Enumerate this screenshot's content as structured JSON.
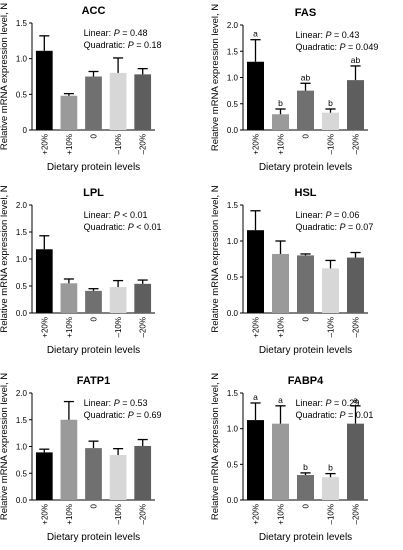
{
  "ui": {
    "colors": {
      "bars": [
        "#000000",
        "#9a9a9a",
        "#707070",
        "#d7d7d7",
        "#5e5e5e"
      ],
      "axis": "#000000"
    }
  },
  "chart_data": [
    {
      "type": "bar",
      "title": "ACC",
      "xlabel": "Dietary protein levels",
      "ylabel": "Relative mRNA expression level, N",
      "categories": [
        "+20%",
        "+10%",
        "0",
        "–10%",
        "–20%"
      ],
      "values": [
        1.11,
        0.48,
        0.75,
        0.8,
        0.78
      ],
      "errors": [
        0.21,
        0.03,
        0.07,
        0.21,
        0.08
      ],
      "ylim": [
        0,
        1.5
      ],
      "yticks": [
        "0",
        "0.5",
        "1.0",
        "1.5"
      ],
      "stats": [
        "Linear: P = 0.48",
        "Quadratic: P = 0.18"
      ],
      "letters": []
    },
    {
      "type": "bar",
      "title": "FAS",
      "xlabel": "Dietary protein levels",
      "ylabel": "Relative mRNA expression level, N",
      "categories": [
        "+20%",
        "+10%",
        "0",
        "–10%",
        "–20%"
      ],
      "values": [
        1.3,
        0.3,
        0.75,
        0.33,
        0.95
      ],
      "errors": [
        0.42,
        0.1,
        0.14,
        0.07,
        0.27
      ],
      "ylim": [
        0,
        2.0
      ],
      "yticks": [
        "0.0",
        "0.5",
        "1.0",
        "1.5",
        "2.0"
      ],
      "stats": [
        "Linear: P = 0.43",
        "Quadratic: P = 0.049"
      ],
      "letters": [
        "a",
        "b",
        "ab",
        "b",
        "ab"
      ]
    },
    {
      "type": "bar",
      "title": "LPL",
      "xlabel": "Dietary protein levels",
      "ylabel": "Relative mRNA expression level, N",
      "categories": [
        "+20%",
        "+10%",
        "0",
        "–10%",
        "–20%"
      ],
      "values": [
        1.18,
        0.55,
        0.41,
        0.48,
        0.54
      ],
      "errors": [
        0.25,
        0.08,
        0.04,
        0.12,
        0.07
      ],
      "ylim": [
        0,
        2.0
      ],
      "yticks": [
        "0.0",
        "0.5",
        "1.0",
        "1.5",
        "2.0"
      ],
      "stats": [
        "Linear: P < 0.01",
        "Quadratic: P < 0.01"
      ],
      "letters": []
    },
    {
      "type": "bar",
      "title": "HSL",
      "xlabel": "Dietary protein levels",
      "ylabel": "Relative mRNA expression level, N",
      "categories": [
        "+20%",
        "+10%",
        "0",
        "–10%",
        "–20%"
      ],
      "values": [
        1.15,
        0.82,
        0.8,
        0.62,
        0.77
      ],
      "errors": [
        0.27,
        0.18,
        0.02,
        0.11,
        0.07
      ],
      "ylim": [
        0,
        1.5
      ],
      "yticks": [
        "0.0",
        "0.5",
        "1.0",
        "1.5"
      ],
      "stats": [
        "Linear: P = 0.06",
        "Quadratic: P = 0.07"
      ],
      "letters": []
    },
    {
      "type": "bar",
      "title": "FATP1",
      "xlabel": "Dietary protein levels",
      "ylabel": "Relative mRNA expression level, N",
      "categories": [
        "+20%",
        "+10%",
        "0",
        "–10%",
        "–20%"
      ],
      "values": [
        0.89,
        1.5,
        0.97,
        0.84,
        1.01
      ],
      "errors": [
        0.06,
        0.34,
        0.13,
        0.12,
        0.12
      ],
      "ylim": [
        0,
        2.0
      ],
      "yticks": [
        "0.0",
        "0.5",
        "1.0",
        "1.5",
        "2.0"
      ],
      "stats": [
        "Linear: P = 0.53",
        "Quadratic: P = 0.69"
      ],
      "letters": []
    },
    {
      "type": "bar",
      "title": "FABP4",
      "xlabel": "Dietary protein levels",
      "ylabel": "Relative mRNA expression level, N",
      "categories": [
        "+20%",
        "+10%",
        "0",
        "–10%",
        "–20%"
      ],
      "values": [
        1.12,
        1.07,
        0.35,
        0.32,
        1.07
      ],
      "errors": [
        0.24,
        0.25,
        0.03,
        0.05,
        0.25
      ],
      "ylim": [
        0,
        1.5
      ],
      "yticks": [
        "0.0",
        "0.5",
        "1.0",
        "1.5"
      ],
      "stats": [
        "Linear: P = 0.29",
        "Quadratic: P = 0.01"
      ],
      "letters": [
        "a",
        "a",
        "b",
        "b",
        "a"
      ]
    }
  ]
}
